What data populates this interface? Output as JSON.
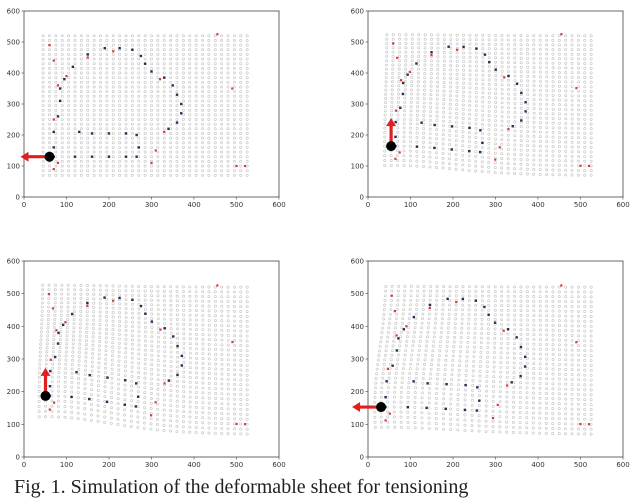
{
  "caption": "Fig. 1. Simulation of the deformable sheet for tensioning",
  "colors": {
    "grid_point": "#c4c4c4",
    "marker_red": "#d93a3a",
    "marker_dark": "#2b2d57",
    "arrow": "#e02020",
    "gripper": "#000000"
  },
  "chart_data": [
    {
      "type": "scatter",
      "panel": "top-left",
      "xlim": [
        0,
        600
      ],
      "ylim": [
        0,
        600
      ],
      "x_ticks": [
        "0",
        "100",
        "200",
        "300",
        "400",
        "500",
        "600"
      ],
      "y_ticks": [
        "0",
        "100",
        "200",
        "300",
        "400",
        "500",
        "600"
      ],
      "gripper": {
        "x": 60,
        "y": 130
      },
      "arrow": {
        "direction": "left"
      },
      "deformation": "none"
    },
    {
      "type": "scatter",
      "panel": "top-right",
      "xlim": [
        0,
        600
      ],
      "ylim": [
        0,
        600
      ],
      "x_ticks": [
        "0",
        "100",
        "200",
        "300",
        "400",
        "500",
        "600"
      ],
      "y_ticks": [
        "0",
        "100",
        "200",
        "300",
        "400",
        "500",
        "600"
      ],
      "gripper": {
        "x": 60,
        "y": 130
      },
      "arrow": {
        "direction": "up"
      },
      "deformation": "slight"
    },
    {
      "type": "scatter",
      "panel": "bottom-left",
      "xlim": [
        0,
        600
      ],
      "ylim": [
        0,
        600
      ],
      "x_ticks": [
        "0",
        "100",
        "200",
        "300",
        "400",
        "500",
        "600"
      ],
      "y_ticks": [
        "0",
        "100",
        "200",
        "300",
        "400",
        "500",
        "600"
      ],
      "gripper": {
        "x": 60,
        "y": 130
      },
      "arrow": {
        "direction": "up"
      },
      "deformation": "strong"
    },
    {
      "type": "scatter",
      "panel": "bottom-right",
      "xlim": [
        0,
        600
      ],
      "ylim": [
        0,
        600
      ],
      "x_ticks": [
        "0",
        "100",
        "200",
        "300",
        "400",
        "500",
        "600"
      ],
      "y_ticks": [
        "0",
        "100",
        "200",
        "300",
        "400",
        "500",
        "600"
      ],
      "gripper": {
        "x": 60,
        "y": 130
      },
      "arrow": {
        "direction": "left"
      },
      "deformation": "medium"
    }
  ]
}
